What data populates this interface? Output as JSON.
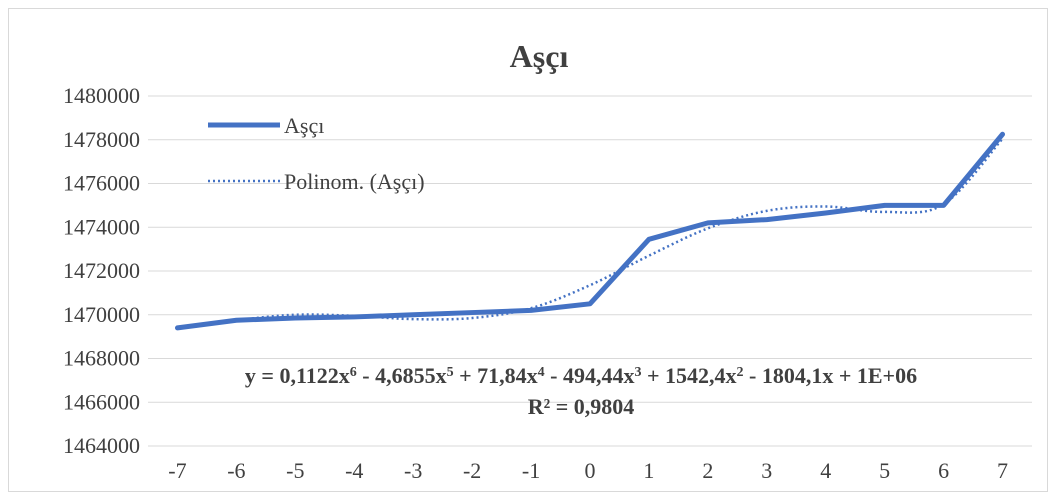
{
  "chart_data": {
    "type": "line",
    "title": "Aşçı",
    "x": [
      -7,
      -6,
      -5,
      -4,
      -3,
      -2,
      -1,
      0,
      1,
      2,
      3,
      4,
      5,
      6,
      7
    ],
    "categories": [
      "-7",
      "-6",
      "-5",
      "-4",
      "-3",
      "-2",
      "-1",
      "0",
      "1",
      "2",
      "3",
      "4",
      "5",
      "6",
      "7"
    ],
    "series": [
      {
        "name": "Aşçı",
        "color": "#4472c4",
        "values": [
          1469400,
          1469750,
          1469850,
          1469900,
          1470000,
          1470100,
          1470200,
          1470500,
          1473450,
          1474200,
          1474350,
          1474650,
          1475000,
          1475000,
          1478250
        ]
      },
      {
        "name": "Polinom. (Aşçı)",
        "color": "#4472c4",
        "style": "dotted",
        "trendline": "polynomial",
        "values": [
          1469400,
          1469750,
          1470000,
          1469950,
          1469800,
          1469850,
          1470300,
          1471350,
          1472700,
          1473950,
          1474750,
          1474950,
          1474700,
          1475050,
          1478050
        ]
      }
    ],
    "ylim": [
      1464000,
      1480000
    ],
    "yticks": [
      "1464000",
      "1466000",
      "1468000",
      "1470000",
      "1472000",
      "1474000",
      "1476000",
      "1478000",
      "1480000"
    ],
    "ytick_values": [
      1464000,
      1466000,
      1468000,
      1470000,
      1472000,
      1474000,
      1476000,
      1478000,
      1480000
    ],
    "grid": true,
    "legend_position": "top-left",
    "annotation": {
      "equation_parts": [
        {
          "t": "y = 0,1122x",
          "sup": false
        },
        {
          "t": "6",
          "sup": true
        },
        {
          "t": " - 4,6855x",
          "sup": false
        },
        {
          "t": "5",
          "sup": true
        },
        {
          "t": " + 71,84x",
          "sup": false
        },
        {
          "t": "4",
          "sup": true
        },
        {
          "t": " - 494,44x",
          "sup": false
        },
        {
          "t": "3",
          "sup": true
        },
        {
          "t": " + 1542,4x",
          "sup": false
        },
        {
          "t": "2",
          "sup": true
        },
        {
          "t": " - 1804,1x + 1E+06",
          "sup": false
        }
      ],
      "r2": "R² = 0,9804"
    }
  }
}
